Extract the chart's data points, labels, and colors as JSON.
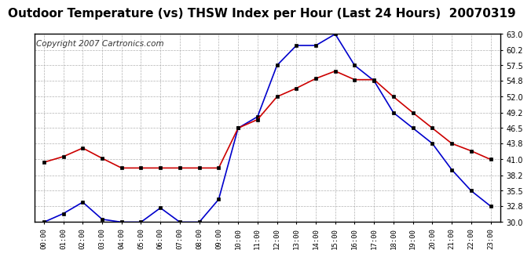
{
  "title": "Outdoor Temperature (vs) THSW Index per Hour (Last 24 Hours)  20070319",
  "copyright": "Copyright 2007 Cartronics.com",
  "hours": [
    "00:00",
    "01:00",
    "02:00",
    "03:00",
    "04:00",
    "05:00",
    "06:00",
    "07:00",
    "08:00",
    "09:00",
    "10:00",
    "11:00",
    "12:00",
    "13:00",
    "14:00",
    "15:00",
    "16:00",
    "17:00",
    "18:00",
    "19:00",
    "20:00",
    "21:00",
    "22:00",
    "23:00"
  ],
  "thsw_blue": [
    30.0,
    31.5,
    33.5,
    30.5,
    30.0,
    30.0,
    32.5,
    30.0,
    30.0,
    34.0,
    46.5,
    48.5,
    57.5,
    61.0,
    61.0,
    63.0,
    57.5,
    54.8,
    49.2,
    46.5,
    43.8,
    39.2,
    35.5,
    32.8
  ],
  "outdoor_temp_red": [
    40.5,
    41.5,
    43.0,
    41.2,
    39.5,
    39.5,
    39.5,
    39.5,
    39.5,
    39.5,
    46.5,
    48.0,
    52.0,
    53.5,
    55.2,
    56.5,
    55.0,
    55.0,
    52.0,
    49.2,
    46.5,
    43.8,
    42.5,
    41.0
  ],
  "blue_color": "#0000cc",
  "red_color": "#cc0000",
  "background_color": "#ffffff",
  "grid_color": "#aaaaaa",
  "ylim": [
    30.0,
    63.0
  ],
  "yticks": [
    30.0,
    32.8,
    35.5,
    38.2,
    41.0,
    43.8,
    46.5,
    49.2,
    52.0,
    54.8,
    57.5,
    60.2,
    63.0
  ],
  "title_fontsize": 11,
  "copyright_fontsize": 7.5
}
